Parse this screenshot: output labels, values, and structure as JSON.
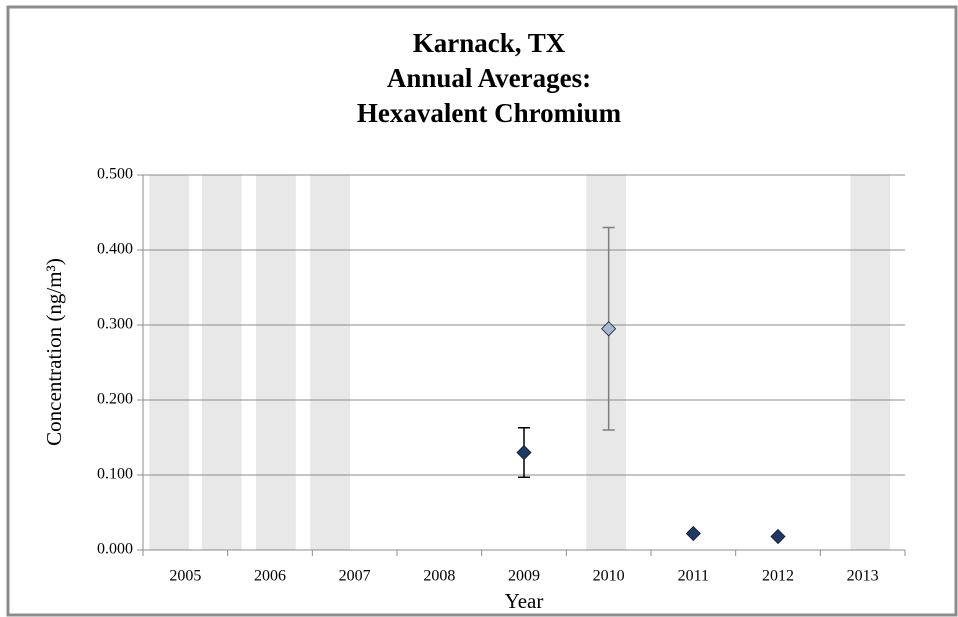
{
  "chart_data": {
    "type": "scatter",
    "title": [
      "Karnack, TX",
      "Annual Averages:",
      "Hexavalent Chromium"
    ],
    "x_label": "Year",
    "y_label": "Concentration (ng/m³)",
    "xlim": [
      2004.5,
      2013.5
    ],
    "xticks": [
      2005,
      2006,
      2007,
      2008,
      2009,
      2010,
      2011,
      2012,
      2013
    ],
    "ylim": [
      0,
      0.5
    ],
    "yticks": [
      {
        "value": 0,
        "label": "0.000"
      },
      {
        "value": 0.1,
        "label": "0.100"
      },
      {
        "value": 0.2,
        "label": "0.200"
      },
      {
        "value": 0.3,
        "label": "0.300"
      },
      {
        "value": 0.4,
        "label": "0.400"
      },
      {
        "value": 0.5,
        "label": "0.500"
      }
    ],
    "grid": true,
    "shading": {
      "color": "#e8e8e8",
      "width": 0.47,
      "x": [
        2004.81,
        2005.43,
        2006.07,
        2006.71,
        2009.97,
        2013.09
      ],
      "values": [
        0.5,
        0.5,
        0.5,
        0.5,
        0.5,
        0.5
      ]
    },
    "series": [
      {
        "x": [
          2009,
          2010,
          2011,
          2012
        ],
        "values": [
          0.13,
          0.295,
          0.022,
          0.018
        ],
        "errors": [
          0.033,
          0.135,
          null,
          null
        ],
        "colors": [
          "#1f3864",
          "#a9b7cf",
          "#1f3864",
          "#1f3864"
        ],
        "error_colors": [
          "#000000",
          "#7f7f7f",
          "#000000",
          "#000000"
        ]
      }
    ]
  }
}
